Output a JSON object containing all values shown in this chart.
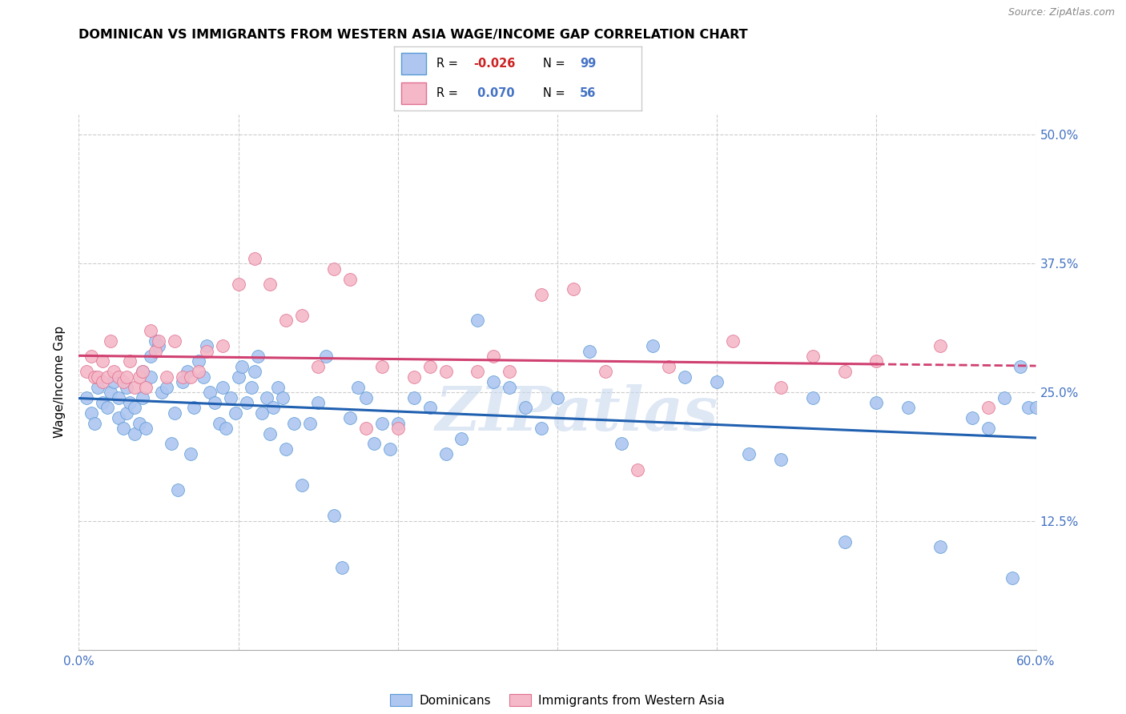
{
  "title": "DOMINICAN VS IMMIGRANTS FROM WESTERN ASIA WAGE/INCOME GAP CORRELATION CHART",
  "source": "Source: ZipAtlas.com",
  "ylabel": "Wage/Income Gap",
  "xlim": [
    0.0,
    0.6
  ],
  "ylim": [
    0.0,
    0.52
  ],
  "ytick_labels_right": [
    "50.0%",
    "37.5%",
    "25.0%",
    "12.5%"
  ],
  "ytick_positions_right": [
    0.5,
    0.375,
    0.25,
    0.125
  ],
  "blue_color": "#5b9bd5",
  "pink_color": "#e07090",
  "scatter_blue_color": "#aec6f0",
  "scatter_pink_color": "#f4b8c8",
  "trendline_blue_color": "#2060b0",
  "trendline_pink_color": "#d04070",
  "watermark": "ZIPatlas",
  "blue_scatter_x": [
    0.005,
    0.008,
    0.01,
    0.012,
    0.015,
    0.018,
    0.02,
    0.022,
    0.025,
    0.025,
    0.028,
    0.03,
    0.03,
    0.032,
    0.035,
    0.035,
    0.038,
    0.04,
    0.04,
    0.042,
    0.045,
    0.045,
    0.048,
    0.05,
    0.052,
    0.055,
    0.058,
    0.06,
    0.062,
    0.065,
    0.068,
    0.07,
    0.072,
    0.075,
    0.078,
    0.08,
    0.082,
    0.085,
    0.088,
    0.09,
    0.092,
    0.095,
    0.098,
    0.1,
    0.102,
    0.105,
    0.108,
    0.11,
    0.112,
    0.115,
    0.118,
    0.12,
    0.122,
    0.125,
    0.128,
    0.13,
    0.135,
    0.14,
    0.145,
    0.15,
    0.155,
    0.16,
    0.165,
    0.17,
    0.175,
    0.18,
    0.185,
    0.19,
    0.195,
    0.2,
    0.21,
    0.22,
    0.23,
    0.24,
    0.25,
    0.26,
    0.27,
    0.28,
    0.29,
    0.3,
    0.32,
    0.34,
    0.36,
    0.38,
    0.4,
    0.42,
    0.44,
    0.46,
    0.48,
    0.5,
    0.52,
    0.54,
    0.56,
    0.57,
    0.58,
    0.585,
    0.59,
    0.595,
    0.6
  ],
  "blue_scatter_y": [
    0.245,
    0.23,
    0.22,
    0.255,
    0.24,
    0.235,
    0.25,
    0.26,
    0.225,
    0.245,
    0.215,
    0.23,
    0.255,
    0.24,
    0.21,
    0.235,
    0.22,
    0.245,
    0.27,
    0.215,
    0.285,
    0.265,
    0.3,
    0.295,
    0.25,
    0.255,
    0.2,
    0.23,
    0.155,
    0.26,
    0.27,
    0.19,
    0.235,
    0.28,
    0.265,
    0.295,
    0.25,
    0.24,
    0.22,
    0.255,
    0.215,
    0.245,
    0.23,
    0.265,
    0.275,
    0.24,
    0.255,
    0.27,
    0.285,
    0.23,
    0.245,
    0.21,
    0.235,
    0.255,
    0.245,
    0.195,
    0.22,
    0.16,
    0.22,
    0.24,
    0.285,
    0.13,
    0.08,
    0.225,
    0.255,
    0.245,
    0.2,
    0.22,
    0.195,
    0.22,
    0.245,
    0.235,
    0.19,
    0.205,
    0.32,
    0.26,
    0.255,
    0.235,
    0.215,
    0.245,
    0.29,
    0.2,
    0.295,
    0.265,
    0.26,
    0.19,
    0.185,
    0.245,
    0.105,
    0.24,
    0.235,
    0.1,
    0.225,
    0.215,
    0.245,
    0.07,
    0.275,
    0.235,
    0.235
  ],
  "pink_scatter_x": [
    0.005,
    0.008,
    0.01,
    0.012,
    0.015,
    0.015,
    0.018,
    0.02,
    0.022,
    0.025,
    0.028,
    0.03,
    0.032,
    0.035,
    0.038,
    0.04,
    0.042,
    0.045,
    0.048,
    0.05,
    0.055,
    0.06,
    0.065,
    0.07,
    0.075,
    0.08,
    0.09,
    0.1,
    0.11,
    0.12,
    0.13,
    0.14,
    0.15,
    0.16,
    0.17,
    0.18,
    0.19,
    0.2,
    0.21,
    0.22,
    0.23,
    0.25,
    0.26,
    0.27,
    0.29,
    0.31,
    0.33,
    0.35,
    0.37,
    0.41,
    0.44,
    0.46,
    0.48,
    0.5,
    0.54,
    0.57
  ],
  "pink_scatter_y": [
    0.27,
    0.285,
    0.265,
    0.265,
    0.28,
    0.26,
    0.265,
    0.3,
    0.27,
    0.265,
    0.26,
    0.265,
    0.28,
    0.255,
    0.265,
    0.27,
    0.255,
    0.31,
    0.29,
    0.3,
    0.265,
    0.3,
    0.265,
    0.265,
    0.27,
    0.29,
    0.295,
    0.355,
    0.38,
    0.355,
    0.32,
    0.325,
    0.275,
    0.37,
    0.36,
    0.215,
    0.275,
    0.215,
    0.265,
    0.275,
    0.27,
    0.27,
    0.285,
    0.27,
    0.345,
    0.35,
    0.27,
    0.175,
    0.275,
    0.3,
    0.255,
    0.285,
    0.27,
    0.28,
    0.295,
    0.235
  ]
}
